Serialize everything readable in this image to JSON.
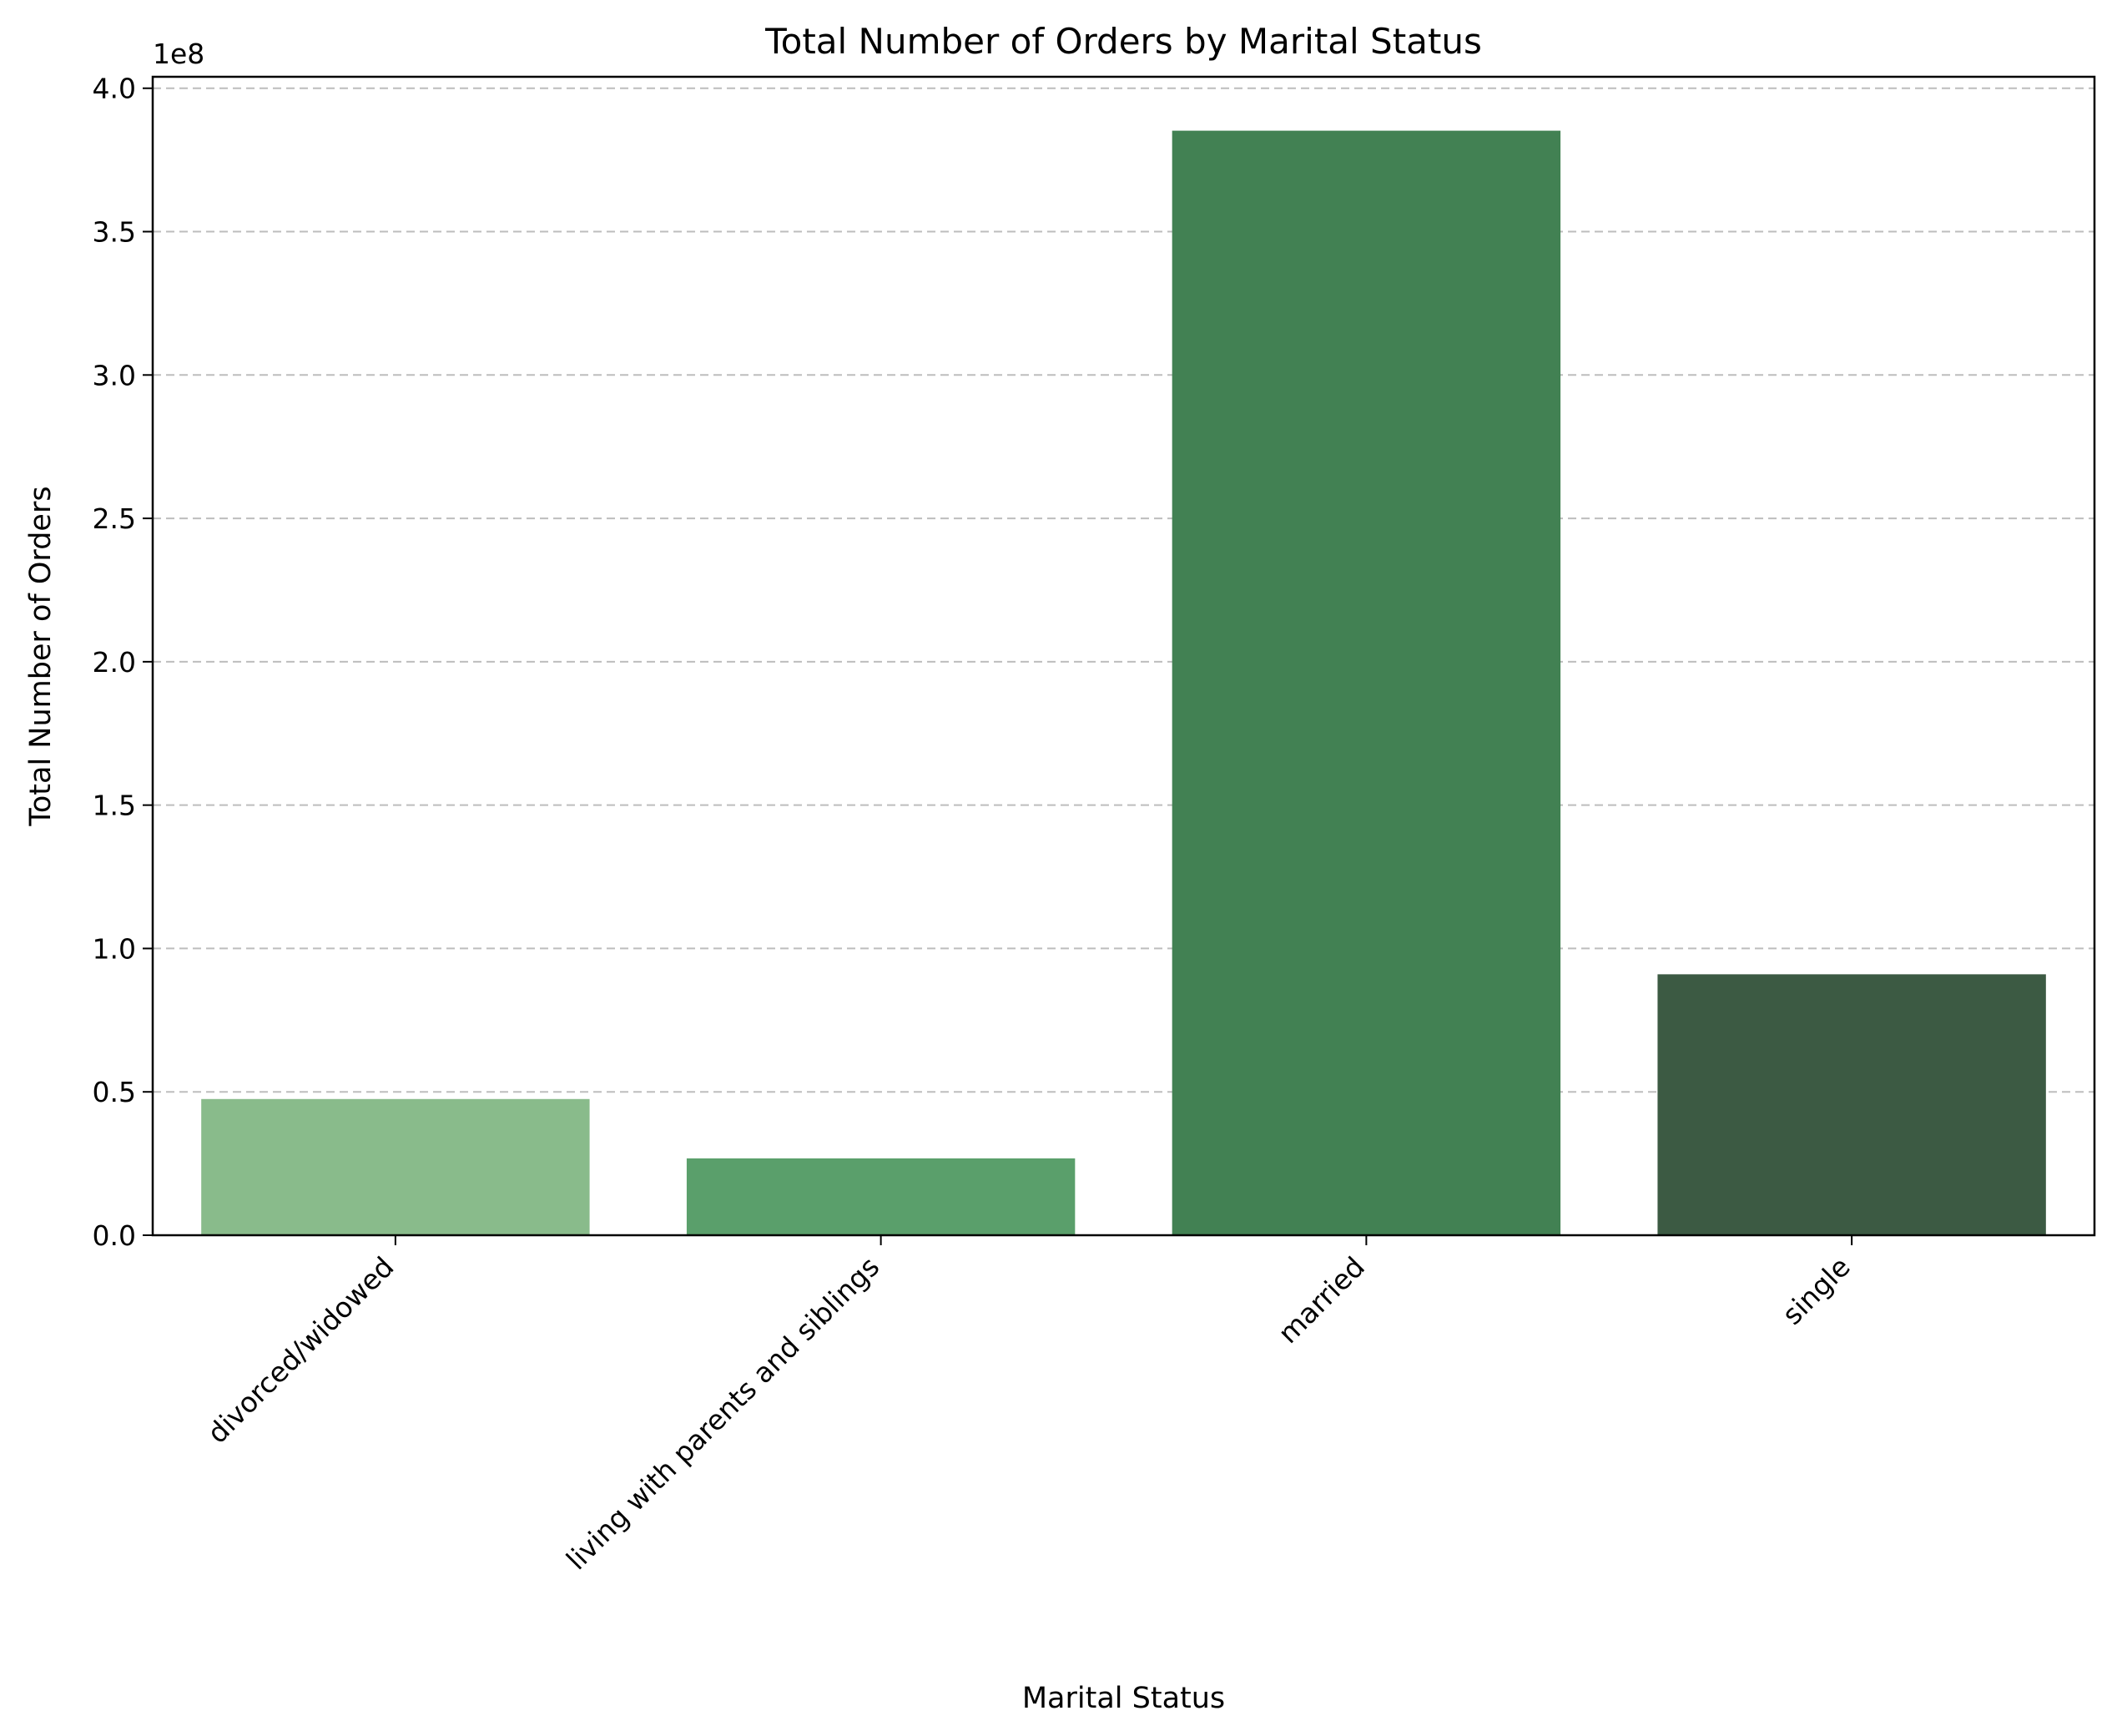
{
  "chart_data": {
    "type": "bar",
    "title": "Total Number of Orders by Marital Status",
    "xlabel": "Marital Status",
    "ylabel": "Total Number of Orders",
    "y_offset_label": "1e8",
    "categories": [
      "divorced/widowed",
      "living with parents and siblings",
      "married",
      "single"
    ],
    "values": [
      47500000,
      26800000,
      385200000,
      91000000
    ],
    "colors": [
      "#89bb8b",
      "#5a9f6b",
      "#428153",
      "#3c5a43"
    ],
    "ylim": [
      0,
      404000000
    ],
    "yticks": [
      {
        "value": 0,
        "label": "0.0"
      },
      {
        "value": 50000000,
        "label": "0.5"
      },
      {
        "value": 100000000,
        "label": "1.0"
      },
      {
        "value": 150000000,
        "label": "1.5"
      },
      {
        "value": 200000000,
        "label": "2.0"
      },
      {
        "value": 250000000,
        "label": "2.5"
      },
      {
        "value": 300000000,
        "label": "3.0"
      },
      {
        "value": 350000000,
        "label": "3.5"
      },
      {
        "value": 400000000,
        "label": "4.0"
      }
    ],
    "grid": "y-dashed",
    "legend": "none"
  }
}
